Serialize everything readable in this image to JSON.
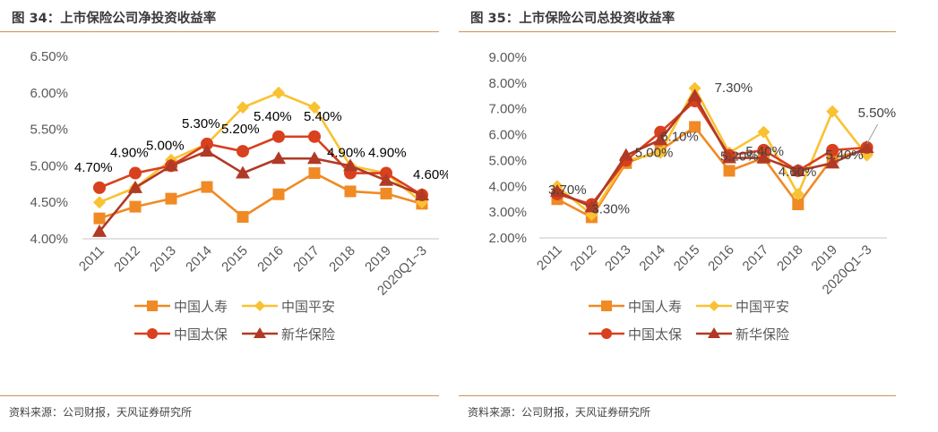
{
  "source_text": "资料来源：公司财报，天风证券研究所",
  "colors": {
    "中国人寿": "#F08A24",
    "中国平安": "#F9C232",
    "中国太保": "#D9401E",
    "新华保险": "#B03A25",
    "rule": "#C8955A"
  },
  "chart_data": [
    {
      "type": "line",
      "title": "图 34：上市保险公司净投资收益率",
      "xlabel": "",
      "ylabel": "",
      "categories": [
        "2011",
        "2012",
        "2013",
        "2014",
        "2015",
        "2016",
        "2017",
        "2018",
        "2019",
        "2020Q1~3"
      ],
      "ylim": [
        4.0,
        6.5
      ],
      "yticks": [
        "4.00%",
        "4.50%",
        "5.00%",
        "5.50%",
        "6.00%",
        "6.50%"
      ],
      "ytick_values": [
        4.0,
        4.5,
        5.0,
        5.5,
        6.0,
        6.5
      ],
      "grid": false,
      "legend": "bottom",
      "series": [
        {
          "name": "中国人寿",
          "marker": "square",
          "values": [
            4.28,
            4.44,
            4.55,
            4.71,
            4.3,
            4.61,
            4.9,
            4.65,
            4.62,
            4.48
          ]
        },
        {
          "name": "中国平安",
          "marker": "diamond",
          "values": [
            4.5,
            4.7,
            5.08,
            5.3,
            5.8,
            6.0,
            5.8,
            5.0,
            4.9,
            4.5
          ]
        },
        {
          "name": "中国太保",
          "marker": "circle",
          "values": [
            4.7,
            4.9,
            5.0,
            5.3,
            5.2,
            5.4,
            5.4,
            4.9,
            4.9,
            4.6
          ],
          "data_labels": [
            "4.70%",
            "4.90%",
            "5.00%",
            "5.30%",
            "5.20%",
            "5.40%",
            "5.40%",
            "4.90%",
            "4.90%",
            "4.60%"
          ]
        },
        {
          "name": "新华保险",
          "marker": "triangle",
          "values": [
            4.1,
            4.7,
            5.0,
            5.2,
            4.9,
            5.1,
            5.1,
            5.0,
            4.8,
            4.6
          ]
        }
      ]
    },
    {
      "type": "line",
      "title": "图 35：上市保险公司总投资收益率",
      "xlabel": "",
      "ylabel": "",
      "categories": [
        "2011",
        "2012",
        "2013",
        "2014",
        "2015",
        "2016",
        "2017",
        "2018",
        "2019",
        "2020Q1~3"
      ],
      "ylim": [
        2.0,
        9.0
      ],
      "yticks": [
        "2.00%",
        "3.00%",
        "4.00%",
        "5.00%",
        "6.00%",
        "7.00%",
        "8.00%",
        "9.00%"
      ],
      "ytick_values": [
        2,
        3,
        4,
        5,
        6,
        7,
        8,
        9
      ],
      "grid": false,
      "legend": "bottom",
      "series": [
        {
          "name": "中国人寿",
          "marker": "square",
          "values": [
            3.5,
            2.8,
            4.9,
            5.4,
            6.3,
            4.6,
            5.1,
            3.3,
            5.1,
            5.4
          ]
        },
        {
          "name": "中国平安",
          "marker": "diamond",
          "values": [
            4.0,
            2.9,
            5.0,
            5.3,
            7.8,
            5.3,
            6.1,
            3.7,
            6.9,
            5.2
          ]
        },
        {
          "name": "中国太保",
          "marker": "circle",
          "values": [
            3.7,
            3.3,
            5.0,
            6.1,
            7.3,
            5.2,
            5.4,
            4.6,
            5.4,
            5.5
          ],
          "data_labels": [
            "3.70%",
            "3.30%",
            "5.00%",
            "6.10%",
            "7.30%",
            "5.20%",
            "5.40%",
            "4.60%",
            "5.40%",
            "5.50%"
          ]
        },
        {
          "name": "新华保险",
          "marker": "triangle",
          "values": [
            3.8,
            3.2,
            5.2,
            5.8,
            7.5,
            5.1,
            5.1,
            4.6,
            4.9,
            5.5
          ]
        }
      ]
    }
  ]
}
